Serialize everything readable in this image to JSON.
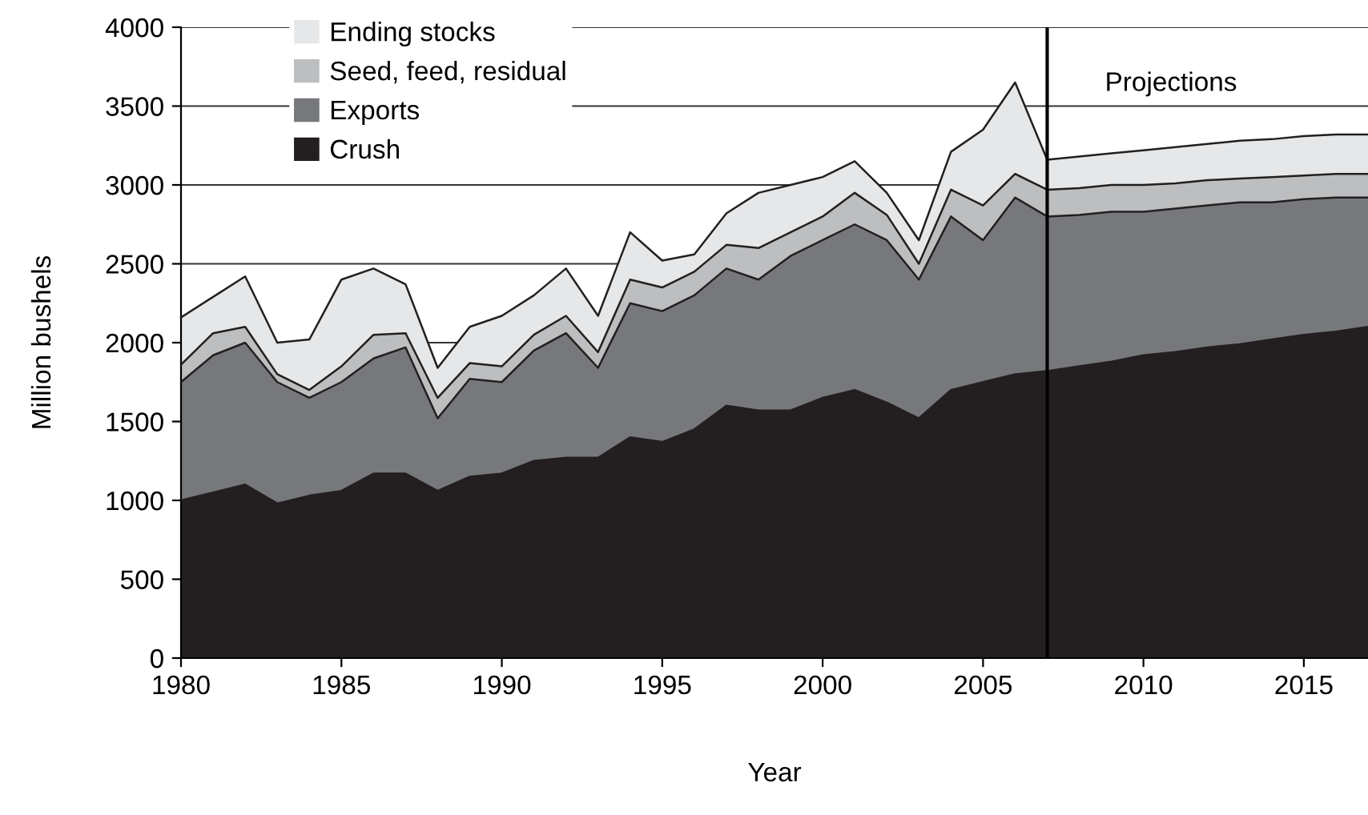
{
  "chart_data": {
    "type": "area",
    "stacked": true,
    "xlabel": "Year",
    "ylabel": "Million bushels",
    "x": [
      1980,
      1981,
      1982,
      1983,
      1984,
      1985,
      1986,
      1987,
      1988,
      1989,
      1990,
      1991,
      1992,
      1993,
      1994,
      1995,
      1996,
      1997,
      1998,
      1999,
      2000,
      2001,
      2002,
      2003,
      2004,
      2005,
      2006,
      2007,
      2008,
      2009,
      2010,
      2011,
      2012,
      2013,
      2014,
      2015,
      2016,
      2017
    ],
    "series": [
      {
        "name": "Crush",
        "color": "#231f20",
        "values": [
          1000,
          1050,
          1100,
          980,
          1030,
          1060,
          1170,
          1170,
          1060,
          1150,
          1170,
          1250,
          1270,
          1270,
          1400,
          1370,
          1450,
          1600,
          1570,
          1570,
          1650,
          1700,
          1620,
          1520,
          1700,
          1750,
          1800,
          1820,
          1850,
          1880,
          1920,
          1940,
          1970,
          1990,
          2020,
          2050,
          2070,
          2100
        ]
      },
      {
        "name": "Exports",
        "color": "#77787b",
        "values": [
          750,
          870,
          900,
          770,
          620,
          690,
          730,
          800,
          460,
          620,
          580,
          700,
          790,
          570,
          850,
          830,
          850,
          870,
          830,
          980,
          1000,
          1050,
          1030,
          880,
          1100,
          900,
          1120,
          980,
          960,
          950,
          910,
          910,
          900,
          900,
          870,
          860,
          850,
          820
        ]
      },
      {
        "name": "Seed, feed, residual",
        "color": "#bcbec0",
        "values": [
          110,
          140,
          100,
          50,
          50,
          100,
          150,
          90,
          130,
          100,
          100,
          100,
          110,
          100,
          150,
          150,
          150,
          150,
          200,
          150,
          150,
          200,
          160,
          100,
          170,
          220,
          150,
          170,
          170,
          170,
          170,
          160,
          160,
          150,
          160,
          150,
          150,
          150
        ]
      },
      {
        "name": "Ending stocks",
        "color": "#e6e7e8",
        "values": [
          300,
          230,
          320,
          200,
          320,
          550,
          420,
          310,
          190,
          230,
          320,
          250,
          300,
          230,
          300,
          170,
          110,
          200,
          350,
          300,
          250,
          200,
          140,
          150,
          240,
          480,
          580,
          190,
          200,
          200,
          220,
          230,
          230,
          240,
          240,
          250,
          250,
          250
        ]
      }
    ],
    "xlim": [
      1980,
      2017
    ],
    "xticks": [
      1980,
      1985,
      1990,
      1995,
      2000,
      2005,
      2010,
      2015
    ],
    "ylim": [
      0,
      4000
    ],
    "yticks": [
      0,
      500,
      1000,
      1500,
      2000,
      2500,
      3000,
      3500,
      4000
    ],
    "grid": "y",
    "legend": "top left",
    "ref_lines": [
      {
        "axis": "x",
        "value": 2007,
        "label": "Projections",
        "color": "#000000"
      }
    ]
  }
}
